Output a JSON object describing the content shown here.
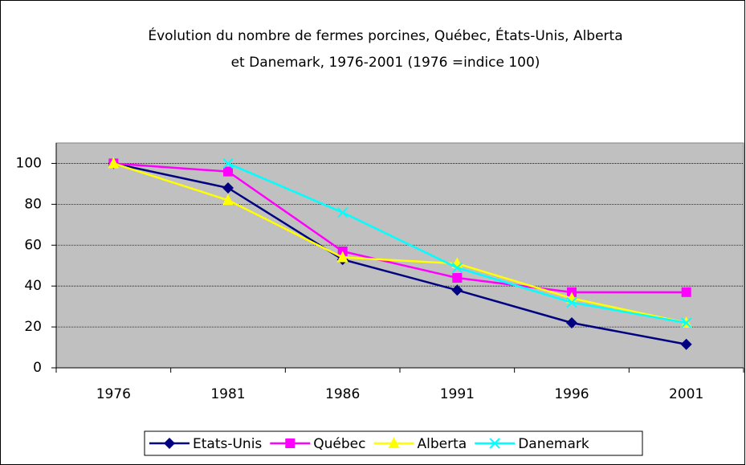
{
  "chart_data": {
    "type": "line",
    "title": [
      "Évolution du nombre de fermes porcines, Québec, États-Unis, Alberta",
      "et Danemark, 1976-2001 (1976 =indice 100)"
    ],
    "categories": [
      "1976",
      "1981",
      "1986",
      "1991",
      "1996",
      "2001"
    ],
    "series": [
      {
        "name": "Etats-Unis",
        "color": "#000080",
        "marker": "diamond",
        "values": [
          100,
          88,
          53,
          38,
          22,
          11.5
        ]
      },
      {
        "name": "Québec",
        "color": "#ff00ff",
        "marker": "square",
        "values": [
          100,
          96,
          57,
          44,
          37,
          37
        ]
      },
      {
        "name": "Alberta",
        "color": "#ffff00",
        "marker": "triangle",
        "values": [
          100,
          82,
          54,
          51,
          34,
          22
        ]
      },
      {
        "name": "Danemark",
        "color": "#00ffff",
        "marker": "x",
        "values": [
          null,
          100,
          76,
          49,
          32,
          22
        ]
      }
    ],
    "ylim": [
      0,
      110
    ],
    "yticks": [
      0,
      20,
      40,
      60,
      80,
      100
    ],
    "grid": true,
    "legend": "bottom"
  }
}
